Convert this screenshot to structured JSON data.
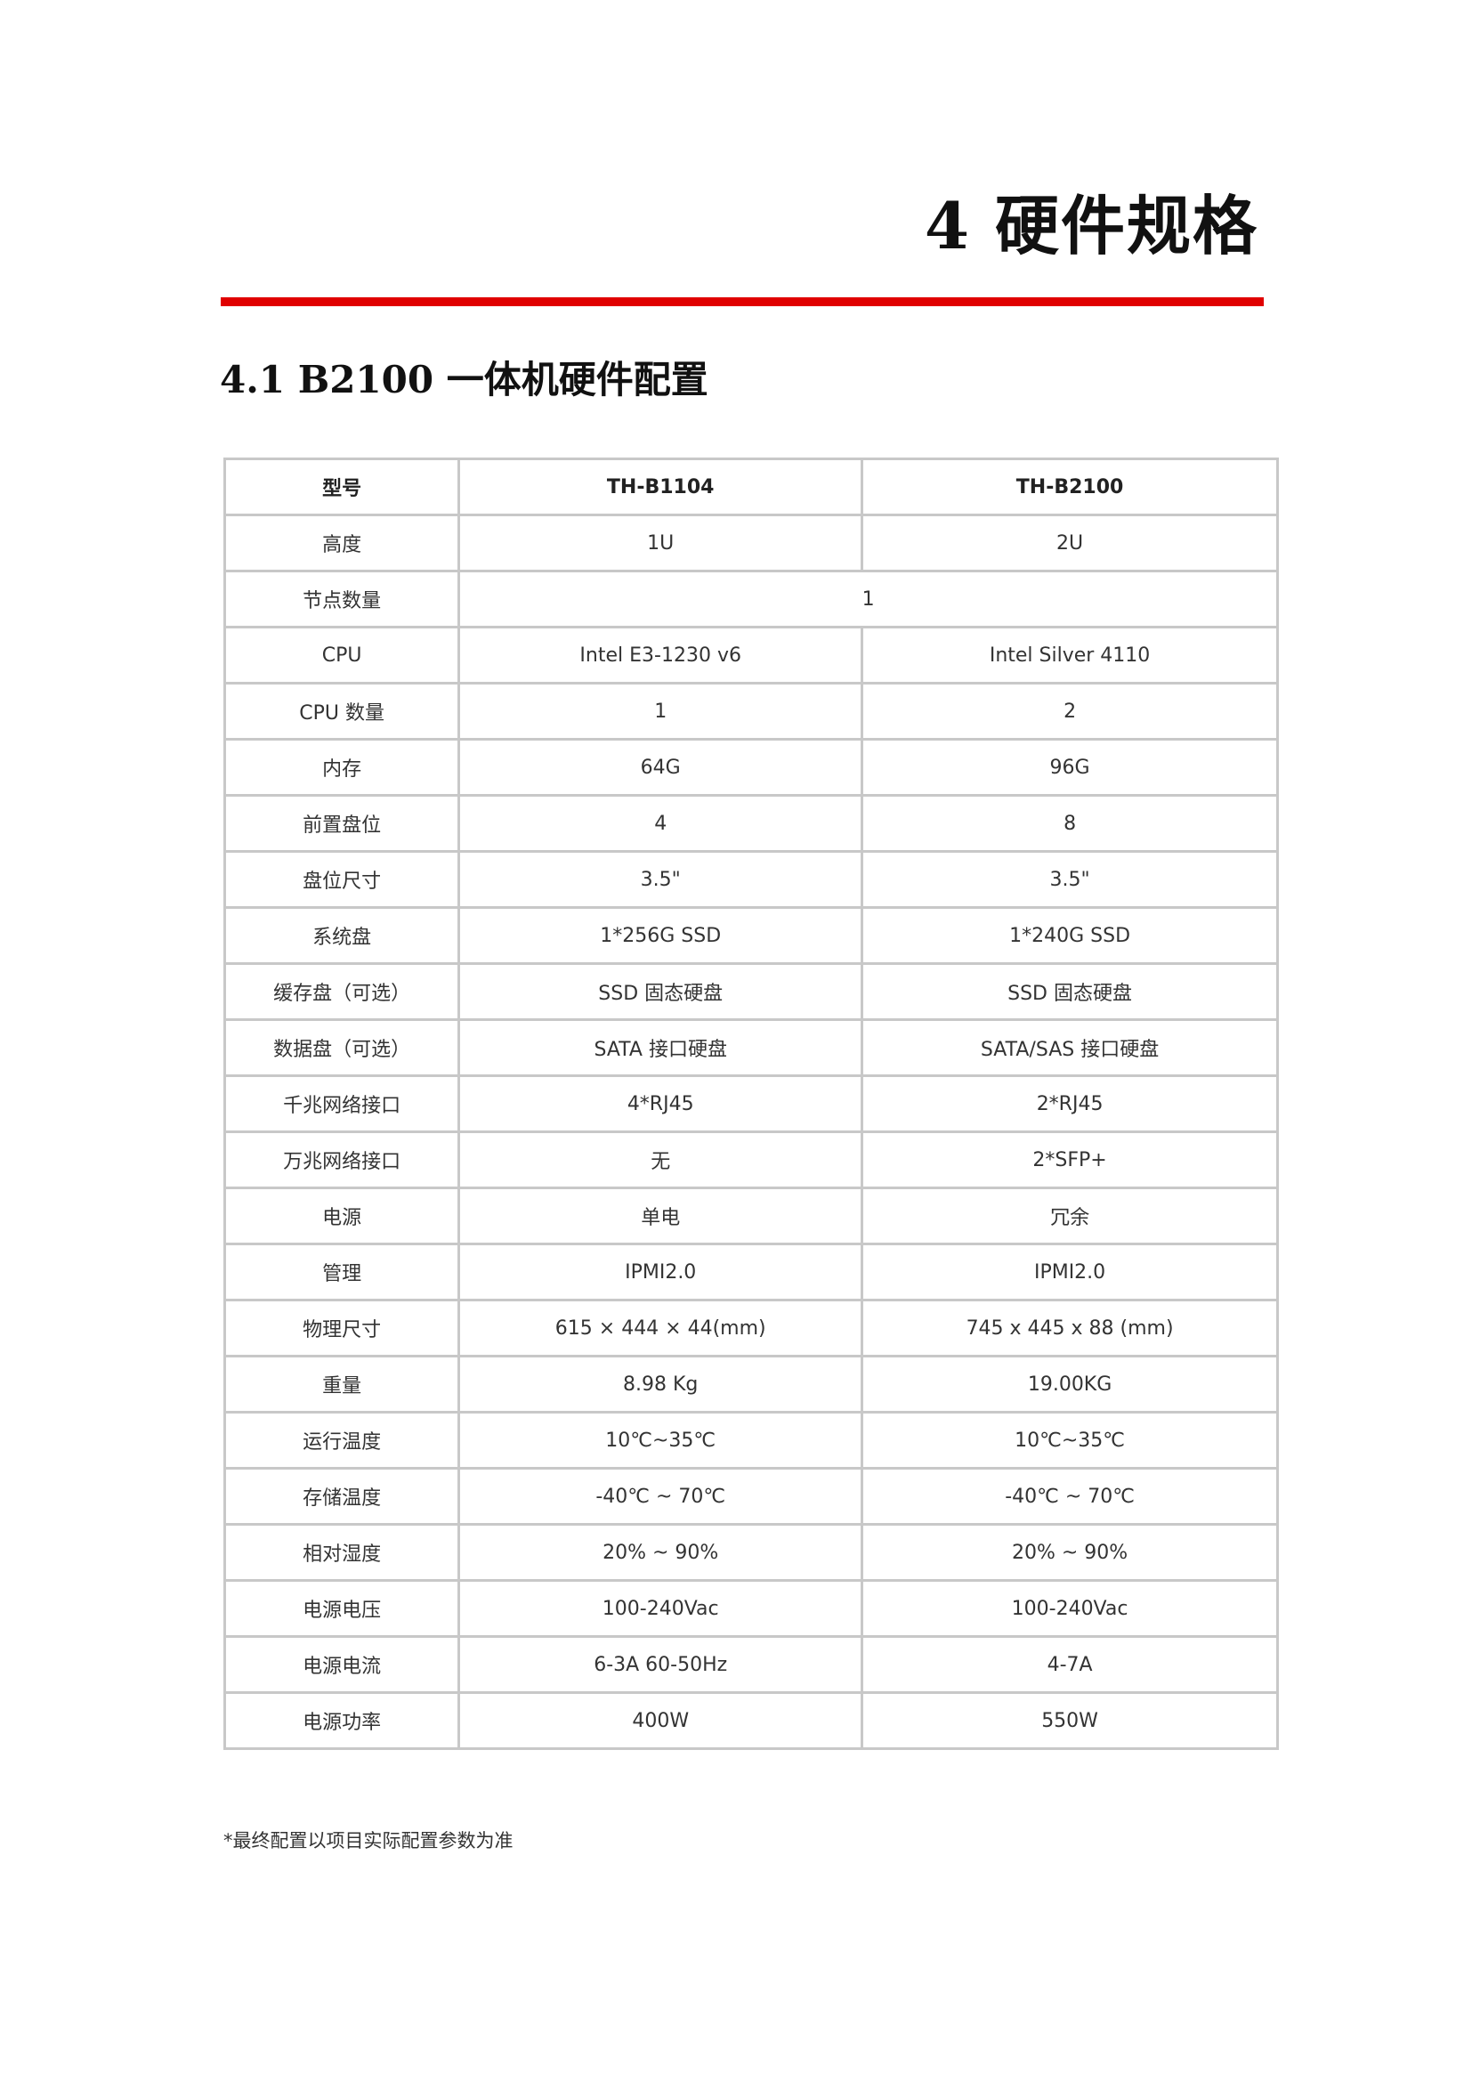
{
  "chapter_title": "4 硬件规格",
  "section_title": "4.1  B2100 一体机硬件配置",
  "accent_color": "#e00000",
  "table": {
    "header": [
      "型号",
      "TH-B1104",
      "TH-B2100"
    ],
    "rows": [
      [
        "高度",
        "1U",
        "2U"
      ],
      [
        "节点数量",
        "1"
      ],
      [
        "CPU",
        "Intel E3-1230 v6",
        "Intel Silver 4110"
      ],
      [
        "CPU 数量",
        "1",
        "2"
      ],
      [
        "内存",
        "64G",
        "96G"
      ],
      [
        "前置盘位",
        "4",
        "8"
      ],
      [
        "盘位尺寸",
        "3.5\"",
        "3.5\""
      ],
      [
        "系统盘",
        "1*256G SSD",
        "1*240G SSD"
      ],
      [
        "缓存盘（可选）",
        "SSD 固态硬盘",
        "SSD 固态硬盘"
      ],
      [
        "数据盘（可选）",
        "SATA 接口硬盘",
        "SATA/SAS 接口硬盘"
      ],
      [
        "千兆网络接口",
        "4*RJ45",
        "2*RJ45"
      ],
      [
        "万兆网络接口",
        "无",
        "2*SFP+"
      ],
      [
        "电源",
        "单电",
        "冗余"
      ],
      [
        "管理",
        "IPMI2.0",
        "IPMI2.0"
      ],
      [
        "物理尺寸",
        "615 × 444 × 44(mm)",
        "745 x 445 x 88 (mm)"
      ],
      [
        "重量",
        "8.98 Kg",
        "19.00KG"
      ],
      [
        "运行温度",
        "10℃~35℃",
        "10℃~35℃"
      ],
      [
        "存储温度",
        "-40℃ ~ 70℃",
        "-40℃ ~ 70℃"
      ],
      [
        "相对湿度",
        "20% ~ 90%",
        "20% ~ 90%"
      ],
      [
        "电源电压",
        "100-240Vac",
        "100-240Vac"
      ],
      [
        "电源电流",
        "6-3A 60-50Hz",
        "4-7A"
      ],
      [
        "电源功率",
        "400W",
        "550W"
      ]
    ]
  },
  "footnote": "*最终配置以项目实际配置参数为准"
}
